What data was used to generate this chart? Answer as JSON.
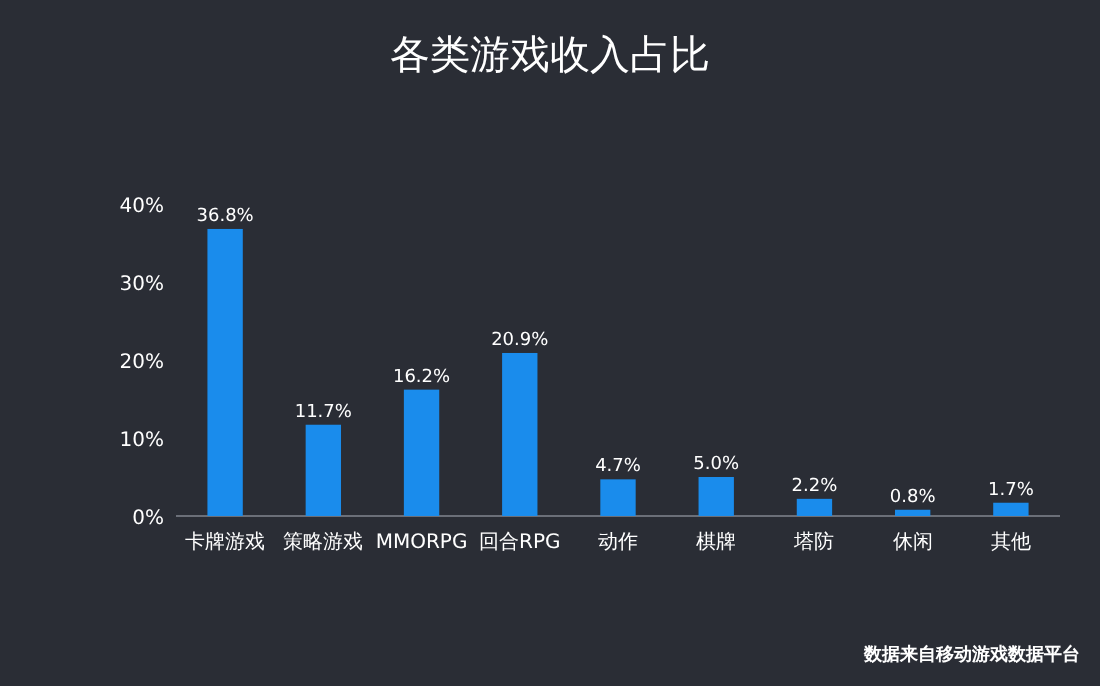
{
  "chart_data": {
    "type": "bar",
    "title": "各类游戏收入占比",
    "categories": [
      "卡牌游戏",
      "策略游戏",
      "MMORPG",
      "回合RPG",
      "动作",
      "棋牌",
      "塔防",
      "休闲",
      "其他"
    ],
    "values": [
      36.8,
      11.7,
      16.2,
      20.9,
      4.7,
      5.0,
      2.2,
      0.8,
      1.7
    ],
    "value_labels": [
      "36.8%",
      "11.7%",
      "16.2%",
      "20.9%",
      "4.7%",
      "5.0%",
      "2.2%",
      "0.8%",
      "1.7%"
    ],
    "color": "#1a8cec",
    "ylim": [
      0,
      40
    ],
    "yticks": [
      {
        "value": 0,
        "label": "0%"
      },
      {
        "value": 10,
        "label": "10%"
      },
      {
        "value": 20,
        "label": "20%"
      },
      {
        "value": 30,
        "label": "30%"
      },
      {
        "value": 40,
        "label": "40%"
      }
    ],
    "annotations": [
      "数据来自移动游戏数据平台"
    ]
  }
}
